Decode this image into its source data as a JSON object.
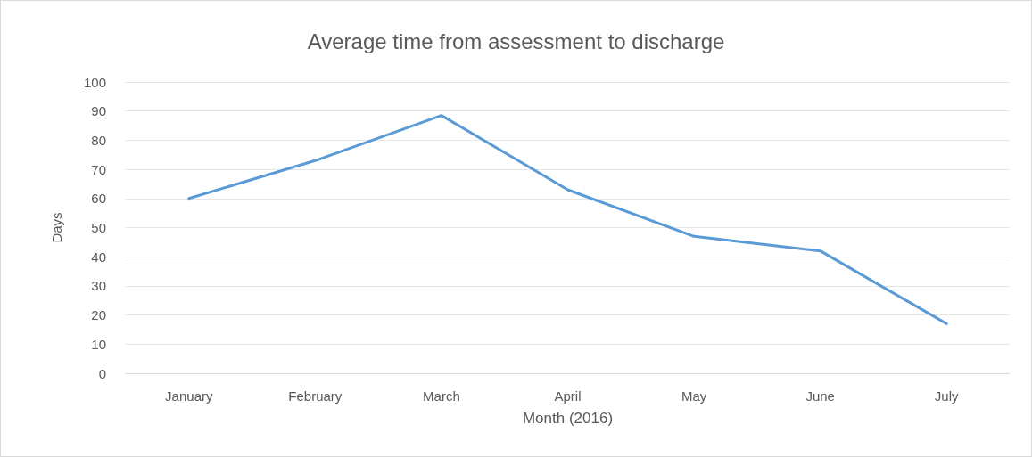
{
  "chart_data": {
    "type": "line",
    "title": "Average time from assessment to discharge",
    "xlabel": "Month (2016)",
    "ylabel": "Days",
    "categories": [
      "January",
      "February",
      "March",
      "April",
      "May",
      "June",
      "July"
    ],
    "series": [
      {
        "color": "#5b9bd5",
        "values": [
          60,
          73,
          88.5,
          63,
          47,
          42,
          17
        ]
      }
    ],
    "ylim": [
      0,
      100
    ],
    "yticks": [
      0,
      10,
      20,
      30,
      40,
      50,
      60,
      70,
      80,
      90,
      100
    ],
    "grid": "y",
    "marker": "none",
    "line_style": "solid"
  }
}
